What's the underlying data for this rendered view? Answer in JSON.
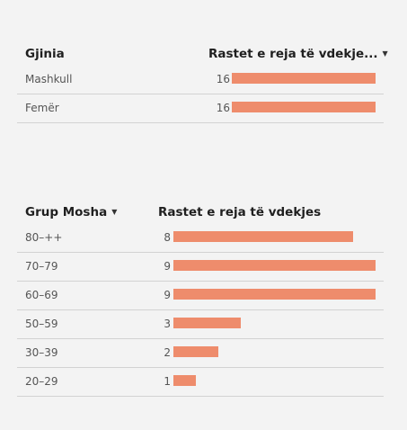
{
  "gender_table": {
    "col_category": "Gjinia",
    "col_value": "Rastet e reja të vdekje...",
    "value_sort_icon": "caret-down-icon",
    "max_value": 16,
    "rows": [
      {
        "label": "Mashkull",
        "value": 16
      },
      {
        "label": "Femër",
        "value": 16
      }
    ]
  },
  "age_table": {
    "col_category": "Grup Mosha",
    "category_sort_icon": "caret-down-icon",
    "col_value": "Rastet e reja të vdekjes",
    "max_value": 9,
    "rows": [
      {
        "label": "80–++",
        "value": 8
      },
      {
        "label": "70–79",
        "value": 9
      },
      {
        "label": "60–69",
        "value": 9
      },
      {
        "label": "50–59",
        "value": 3
      },
      {
        "label": "30–39",
        "value": 2
      },
      {
        "label": "20–29",
        "value": 1
      }
    ]
  },
  "colors": {
    "bar": "#ee8c6c",
    "background": "#f3f3f3",
    "row_divider": "#d2d2d2"
  }
}
